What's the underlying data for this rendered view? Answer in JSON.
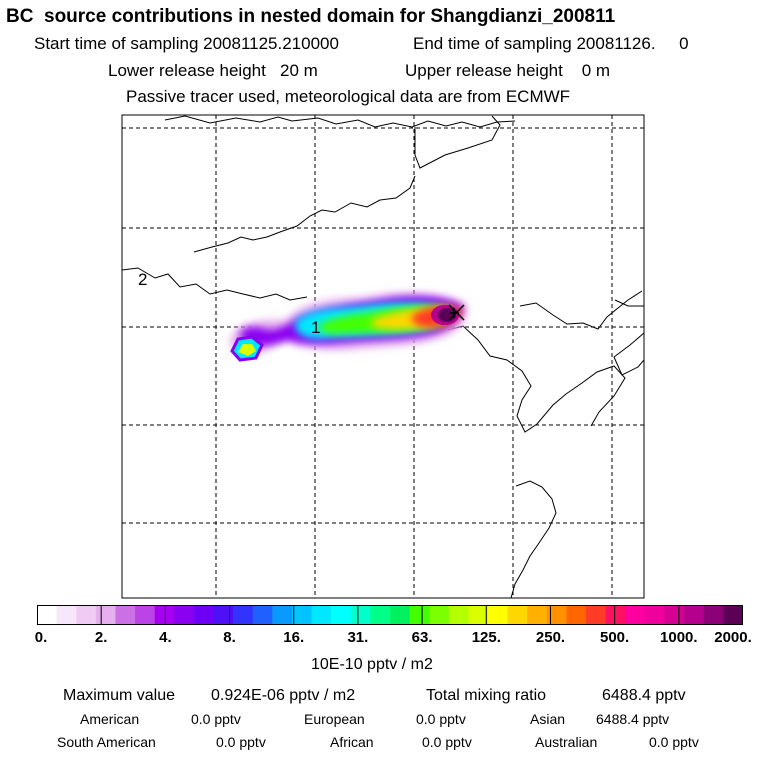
{
  "header": {
    "title": "BC  source contributions in nested domain for Shangdianzi_200811",
    "start": "Start time of sampling 20081125.210000",
    "end": "End time of sampling 20081126.     0",
    "lower": "Lower release height   20 m",
    "upper": "Upper release height    0 m",
    "info": "Passive tracer used, meteorological data are from ECMWF"
  },
  "map": {
    "markers": [
      {
        "label": "1",
        "name": "marker-1"
      },
      {
        "label": "2",
        "name": "marker-2"
      }
    ],
    "receptor_symbol": "×"
  },
  "colorbar": {
    "colors": [
      "#ffffff",
      "#f8e6fa",
      "#f0ccf5",
      "#e6b0ef",
      "#cc70e6",
      "#bb44e6",
      "#a700f0",
      "#8a00f0",
      "#6e00f5",
      "#4f10f8",
      "#3333ff",
      "#2060ff",
      "#0a9aff",
      "#00c4ff",
      "#00e8ff",
      "#00ffff",
      "#00ffcc",
      "#00ff88",
      "#00f060",
      "#44ff00",
      "#7cff00",
      "#b4ff00",
      "#dcff00",
      "#ffff00",
      "#ffd700",
      "#ffb000",
      "#ff9000",
      "#ff6600",
      "#ff3c28",
      "#ff1060",
      "#ff00a0",
      "#f0009c",
      "#d60094",
      "#b4008c",
      "#8c0078",
      "#5c0057"
    ],
    "ticks": [
      "0.",
      "2.",
      "4.",
      "8.",
      "16.",
      "31.",
      "63.",
      "125.",
      "250.",
      "500.",
      "1000.",
      "2000."
    ],
    "unit": "10E-10 pptv / m2"
  },
  "stats": {
    "max_label": "Maximum value",
    "max_value": "0.924E-06 pptv / m2",
    "total_label": "Total mixing ratio",
    "total_value": "6488.4 pptv",
    "regions": [
      {
        "name": "American",
        "value": "0.0 pptv"
      },
      {
        "name": "European",
        "value": "0.0 pptv"
      },
      {
        "name": "Asian",
        "value": "6488.4 pptv"
      },
      {
        "name": "South American",
        "value": "0.0 pptv"
      },
      {
        "name": "African",
        "value": "0.0 pptv"
      },
      {
        "name": "Australian",
        "value": "0.0 pptv"
      }
    ]
  }
}
